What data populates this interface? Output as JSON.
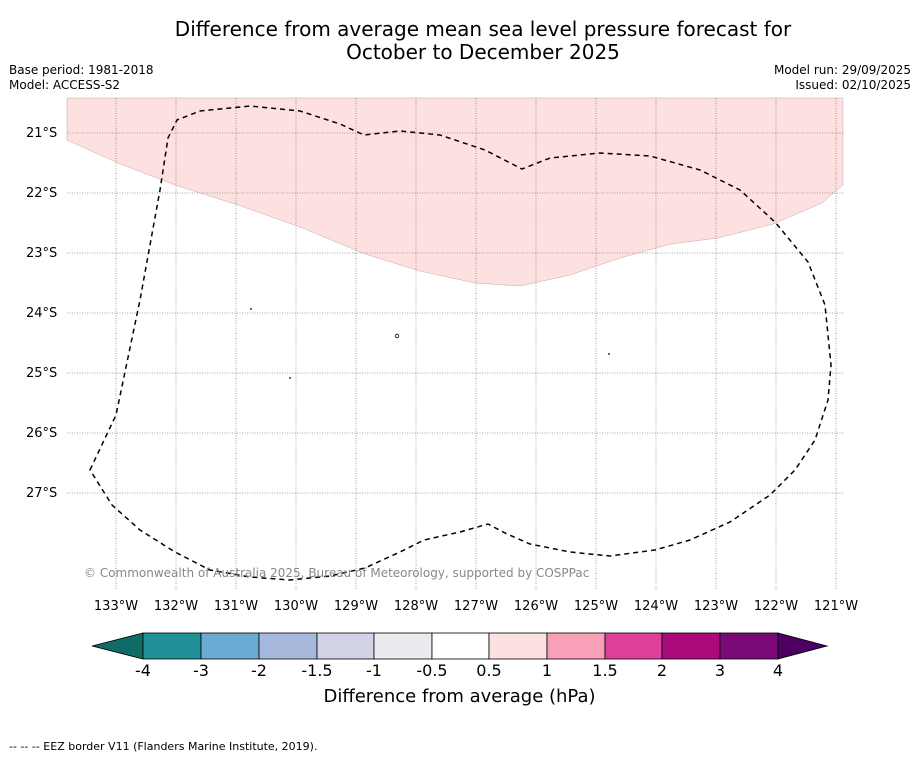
{
  "title": {
    "line1": "Difference from average mean sea level pressure forecast for",
    "line2": "October to December 2025"
  },
  "meta": {
    "base_period": "Base period: 1981-2018",
    "model": "Model: ACCESS-S2",
    "model_run": "Model run: 29/09/2025",
    "issued": "Issued: 02/10/2025"
  },
  "map": {
    "lat_labels": [
      "21°S",
      "22°S",
      "23°S",
      "24°S",
      "25°S",
      "26°S",
      "27°S"
    ],
    "lon_labels": [
      "133°W",
      "132°W",
      "131°W",
      "130°W",
      "129°W",
      "128°W",
      "127°W",
      "126°W",
      "125°W",
      "124°W",
      "123°W",
      "122°W",
      "121°W"
    ],
    "copyright": "© Commonwealth of Australia 2025, Bureau of Meteorology, supported by COSPPac",
    "shaded_category": "0.5 to 1",
    "shaded_color": "#fde0e0"
  },
  "colorbar": {
    "ticks": [
      "-4",
      "-3",
      "-2",
      "-1.5",
      "-1",
      "-0.5",
      "0.5",
      "1",
      "1.5",
      "2",
      "3",
      "4"
    ],
    "colors": [
      "#0e6b65",
      "#1f9196",
      "#6aaad3",
      "#a6b9dc",
      "#d3d3e8",
      "#ebeaef",
      "#ffffff",
      "#fde0e0",
      "#f8a0b7",
      "#dd3f9b",
      "#aa0a7b",
      "#7b0a78",
      "#4b0062"
    ],
    "label": "Difference from average (hPa)"
  },
  "footnote": "--  --  -- EEZ border V11 (Flanders Marine Institute, 2019)."
}
